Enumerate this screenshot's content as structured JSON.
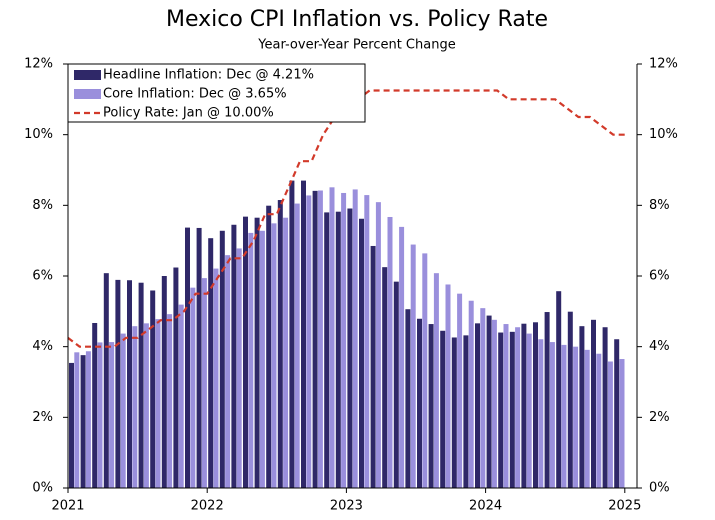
{
  "chart_data": {
    "type": "bar",
    "title": "Mexico CPI Inflation vs. Policy Rate",
    "subtitle": "Year-over-Year Percent Change",
    "categories": [
      "2021",
      null,
      null,
      null,
      null,
      null,
      null,
      null,
      null,
      null,
      null,
      null,
      "2022",
      null,
      null,
      null,
      null,
      null,
      null,
      null,
      null,
      null,
      null,
      null,
      "2023",
      null,
      null,
      null,
      null,
      null,
      null,
      null,
      null,
      null,
      null,
      null,
      "2024",
      null,
      null,
      null,
      null,
      null,
      null,
      null,
      null,
      null,
      null,
      null,
      "2025"
    ],
    "series": [
      {
        "name": "Headline Inflation: Dec @ 4.21%",
        "type": "bar",
        "color": "#2f2868",
        "values": [
          3.54,
          3.76,
          4.67,
          6.08,
          5.89,
          5.88,
          5.81,
          5.59,
          6.0,
          6.24,
          7.37,
          7.36,
          7.07,
          7.28,
          7.45,
          7.68,
          7.65,
          7.99,
          8.15,
          8.7,
          8.7,
          8.41,
          7.8,
          7.82,
          7.91,
          7.62,
          6.85,
          6.25,
          5.84,
          5.06,
          4.79,
          4.64,
          4.45,
          4.26,
          4.32,
          4.66,
          4.88,
          4.4,
          4.42,
          4.65,
          4.69,
          4.98,
          5.57,
          4.99,
          4.58,
          4.76,
          4.55,
          4.21,
          null
        ]
      },
      {
        "name": "Core Inflation: Dec @ 3.65%",
        "type": "bar",
        "color": "#9a8fdc",
        "values": [
          3.84,
          3.87,
          4.12,
          4.13,
          4.37,
          4.58,
          4.66,
          4.78,
          4.92,
          5.19,
          5.67,
          5.94,
          6.21,
          6.59,
          6.78,
          7.22,
          7.28,
          7.49,
          7.65,
          8.05,
          8.28,
          8.42,
          8.51,
          8.35,
          8.45,
          8.29,
          8.09,
          7.67,
          7.39,
          6.89,
          6.64,
          6.08,
          5.76,
          5.5,
          5.3,
          5.09,
          4.76,
          4.64,
          4.55,
          4.37,
          4.21,
          4.13,
          4.05,
          4.0,
          3.91,
          3.8,
          3.58,
          3.65,
          null
        ]
      },
      {
        "name": "Policy Rate: Jan @ 10.00%",
        "type": "line",
        "axis": "y2",
        "color": "#d23a2a",
        "values": [
          4.25,
          4.0,
          4.0,
          4.0,
          4.0,
          4.25,
          4.25,
          4.5,
          4.75,
          4.75,
          5.0,
          5.5,
          5.5,
          6.0,
          6.5,
          6.5,
          7.0,
          7.75,
          7.75,
          8.5,
          9.25,
          9.25,
          10.0,
          10.5,
          10.5,
          11.0,
          11.25,
          11.25,
          11.25,
          11.25,
          11.25,
          11.25,
          11.25,
          11.25,
          11.25,
          11.25,
          11.25,
          11.25,
          11.0,
          11.0,
          11.0,
          11.0,
          11.0,
          10.75,
          10.5,
          10.5,
          10.25,
          10.0,
          10.0
        ]
      }
    ],
    "ylim": [
      0,
      12
    ],
    "yticks": [
      {
        "value": 0,
        "label": "0%"
      },
      {
        "value": 2,
        "label": "2%"
      },
      {
        "value": 4,
        "label": "4%"
      },
      {
        "value": 6,
        "label": "6%"
      },
      {
        "value": 8,
        "label": "8%"
      },
      {
        "value": 10,
        "label": "10%"
      },
      {
        "value": 12,
        "label": "12%"
      }
    ],
    "y2lim": [
      0,
      12
    ],
    "y2ticks": [
      {
        "value": 0,
        "label": "0%"
      },
      {
        "value": 2,
        "label": "2%"
      },
      {
        "value": 4,
        "label": "4%"
      },
      {
        "value": 6,
        "label": "6%"
      },
      {
        "value": 8,
        "label": "8%"
      },
      {
        "value": 10,
        "label": "10%"
      },
      {
        "value": 12,
        "label": "12%"
      }
    ],
    "legend": "top-left",
    "grid": false
  }
}
